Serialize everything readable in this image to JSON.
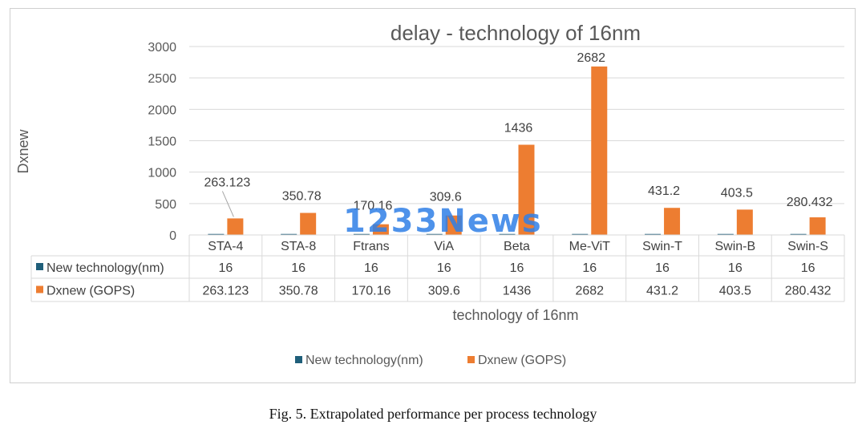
{
  "chart_data": {
    "type": "bar",
    "title": "delay - technology of 16nm",
    "xlabel": "technology of 16nm",
    "ylabel": "Dxnew",
    "ylim": [
      0,
      3000
    ],
    "yticks": [
      0,
      500,
      1000,
      1500,
      2000,
      2500,
      3000
    ],
    "grid": true,
    "legend_position": "bottom",
    "categories": [
      "STA-4",
      "STA-8",
      "Ftrans",
      "ViA",
      "Beta",
      "Me-ViT",
      "Swin-T",
      "Swin-B",
      "Swin-S"
    ],
    "series": [
      {
        "name": "New technology(nm)",
        "color": "#1f5f7a",
        "values": [
          16,
          16,
          16,
          16,
          16,
          16,
          16,
          16,
          16
        ],
        "display": [
          "16",
          "16",
          "16",
          "16",
          "16",
          "16",
          "16",
          "16",
          "16"
        ]
      },
      {
        "name": "Dxnew (GOPS)",
        "color": "#ed7d31",
        "values": [
          263.123,
          350.78,
          170.16,
          309.6,
          1436,
          2682,
          431.2,
          403.5,
          280.432
        ],
        "display": [
          "263.123",
          "350.78",
          "170.16",
          "309.6",
          "1436",
          "2682",
          "431.2",
          "403.5",
          "280.432"
        ]
      }
    ],
    "data_table": true
  },
  "watermark": "1233News",
  "caption": "Fig. 5.  Extrapolated performance per process technology"
}
